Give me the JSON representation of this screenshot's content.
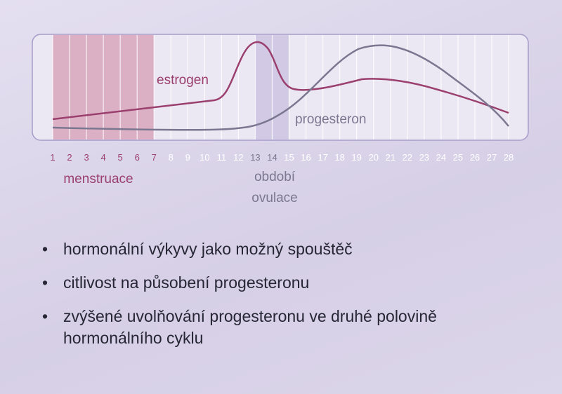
{
  "chart": {
    "days": [
      1,
      2,
      3,
      4,
      5,
      6,
      7,
      8,
      9,
      10,
      11,
      12,
      13,
      14,
      15,
      16,
      17,
      18,
      19,
      20,
      21,
      22,
      23,
      24,
      25,
      26,
      27,
      28
    ],
    "estrogen_label": "estrogen",
    "progesteron_label": "progesteron",
    "menstruation_label": "menstruace",
    "ovulation_label": [
      "období",
      "ovulace"
    ]
  },
  "bullets": [
    "hormonální výkyvy jako možný spouštěč",
    "citlivost na působení progesteronu",
    "zvýšené uvolňování progesteronu ve druhé polovině hormonálního cyklu"
  ]
}
